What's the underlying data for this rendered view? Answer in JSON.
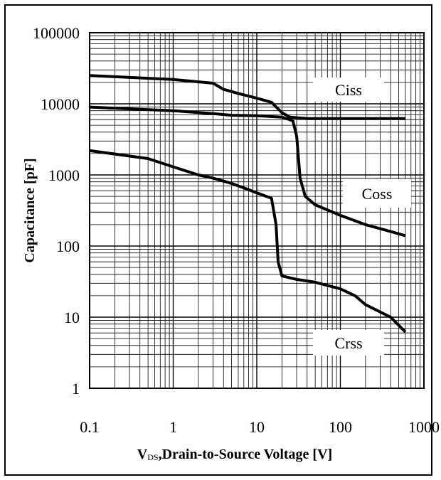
{
  "chart_data": {
    "type": "line",
    "x_scale": "log",
    "y_scale": "log",
    "xlim": [
      0.1,
      1000
    ],
    "ylim": [
      1,
      100000
    ],
    "grid": true,
    "x_ticks": [
      "0.1",
      "1",
      "10",
      "100",
      "1000"
    ],
    "y_ticks": [
      "100000",
      "10000",
      "1000",
      "100",
      "10",
      "1"
    ],
    "xlabel_prefix": "V",
    "xlabel_sub": "DS",
    "xlabel_main": ",Drain-to-Source Voltage [V]",
    "ylabel": "Capacitance [pF]",
    "series": [
      {
        "name": "Ciss",
        "points": [
          [
            0.1,
            25000
          ],
          [
            1,
            22000
          ],
          [
            3,
            19500
          ],
          [
            4,
            16000
          ],
          [
            6,
            14000
          ],
          [
            10,
            12000
          ],
          [
            15,
            10500
          ],
          [
            20,
            7500
          ],
          [
            25,
            6500
          ],
          [
            40,
            6200
          ],
          [
            100,
            6200
          ],
          [
            300,
            6200
          ],
          [
            600,
            6200
          ]
        ]
      },
      {
        "name": "Coss",
        "points": [
          [
            0.1,
            9000
          ],
          [
            1,
            8000
          ],
          [
            3,
            7300
          ],
          [
            5,
            6900
          ],
          [
            10,
            6800
          ],
          [
            20,
            6500
          ],
          [
            27,
            5800
          ],
          [
            30,
            3500
          ],
          [
            33,
            900
          ],
          [
            38,
            500
          ],
          [
            50,
            380
          ],
          [
            100,
            270
          ],
          [
            200,
            200
          ],
          [
            400,
            160
          ],
          [
            600,
            140
          ]
        ]
      },
      {
        "name": "Crss",
        "points": [
          [
            0.1,
            2200
          ],
          [
            0.5,
            1700
          ],
          [
            1,
            1300
          ],
          [
            2,
            1000
          ],
          [
            3,
            900
          ],
          [
            5,
            760
          ],
          [
            8,
            620
          ],
          [
            10,
            560
          ],
          [
            15,
            470
          ],
          [
            17,
            200
          ],
          [
            18,
            60
          ],
          [
            20,
            38
          ],
          [
            30,
            34
          ],
          [
            50,
            31
          ],
          [
            100,
            25
          ],
          [
            150,
            20
          ],
          [
            200,
            15
          ],
          [
            400,
            10
          ],
          [
            600,
            6.2
          ]
        ]
      }
    ]
  }
}
